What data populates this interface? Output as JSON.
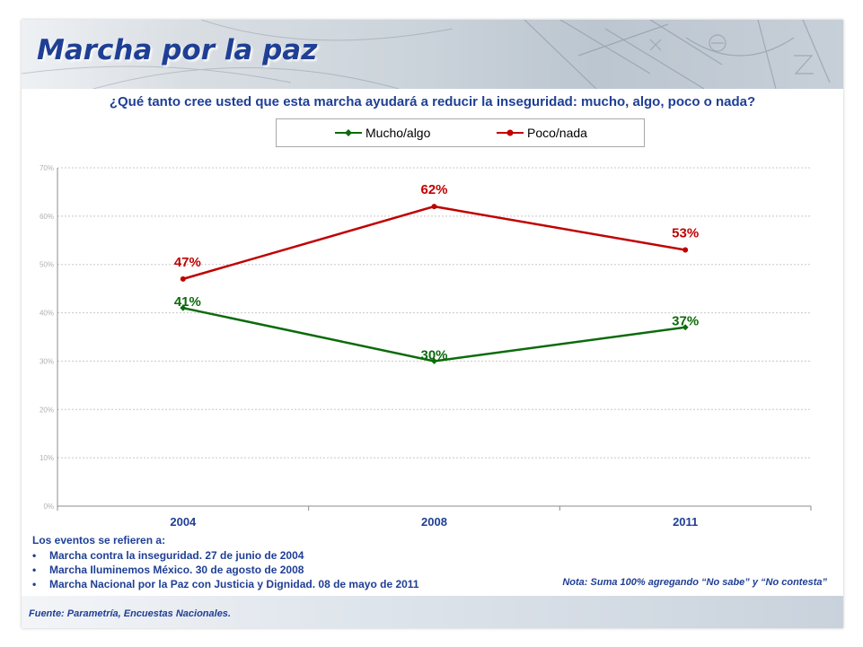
{
  "slide": {
    "title": "Marcha por la paz",
    "question": "¿Qué tanto cree usted que esta marcha ayudará a reducir la inseguridad: mucho, algo, poco o nada?"
  },
  "chart_data": {
    "type": "line",
    "categories": [
      "2004",
      "2008",
      "2011"
    ],
    "series": [
      {
        "name": "Mucho/algo",
        "values": [
          41,
          30,
          37
        ],
        "labels": [
          "41%",
          "30%",
          "37%"
        ],
        "color": "#0b6b0b"
      },
      {
        "name": "Poco/nada",
        "values": [
          47,
          62,
          53
        ],
        "labels": [
          "47%",
          "62%",
          "53%"
        ],
        "color": "#c00000"
      }
    ],
    "yticks": [
      0,
      10,
      20,
      30,
      40,
      50,
      60,
      70
    ],
    "ytick_labels": [
      "0%",
      "10%",
      "20%",
      "30%",
      "40%",
      "50%",
      "60%",
      "70%"
    ],
    "ylim": [
      0,
      70
    ],
    "grid": true,
    "legend_placement": "top"
  },
  "notes": {
    "heading": "Los eventos se refieren a:",
    "items": [
      "Marcha contra la inseguridad. 27 de junio de 2004",
      "Marcha Iluminemos México. 30 de agosto de 2008",
      "Marcha Nacional por la Paz con Justicia y Dignidad. 08 de mayo de 2011"
    ],
    "nota": "Nota: Suma 100% agregando “No sabe” y “No contesta”"
  },
  "footer": {
    "source": "Fuente: Parametría, Encuestas Nacionales."
  },
  "colors": {
    "title_blue": "#1f3f95",
    "green": "#0b6b0b",
    "red": "#c00000"
  }
}
